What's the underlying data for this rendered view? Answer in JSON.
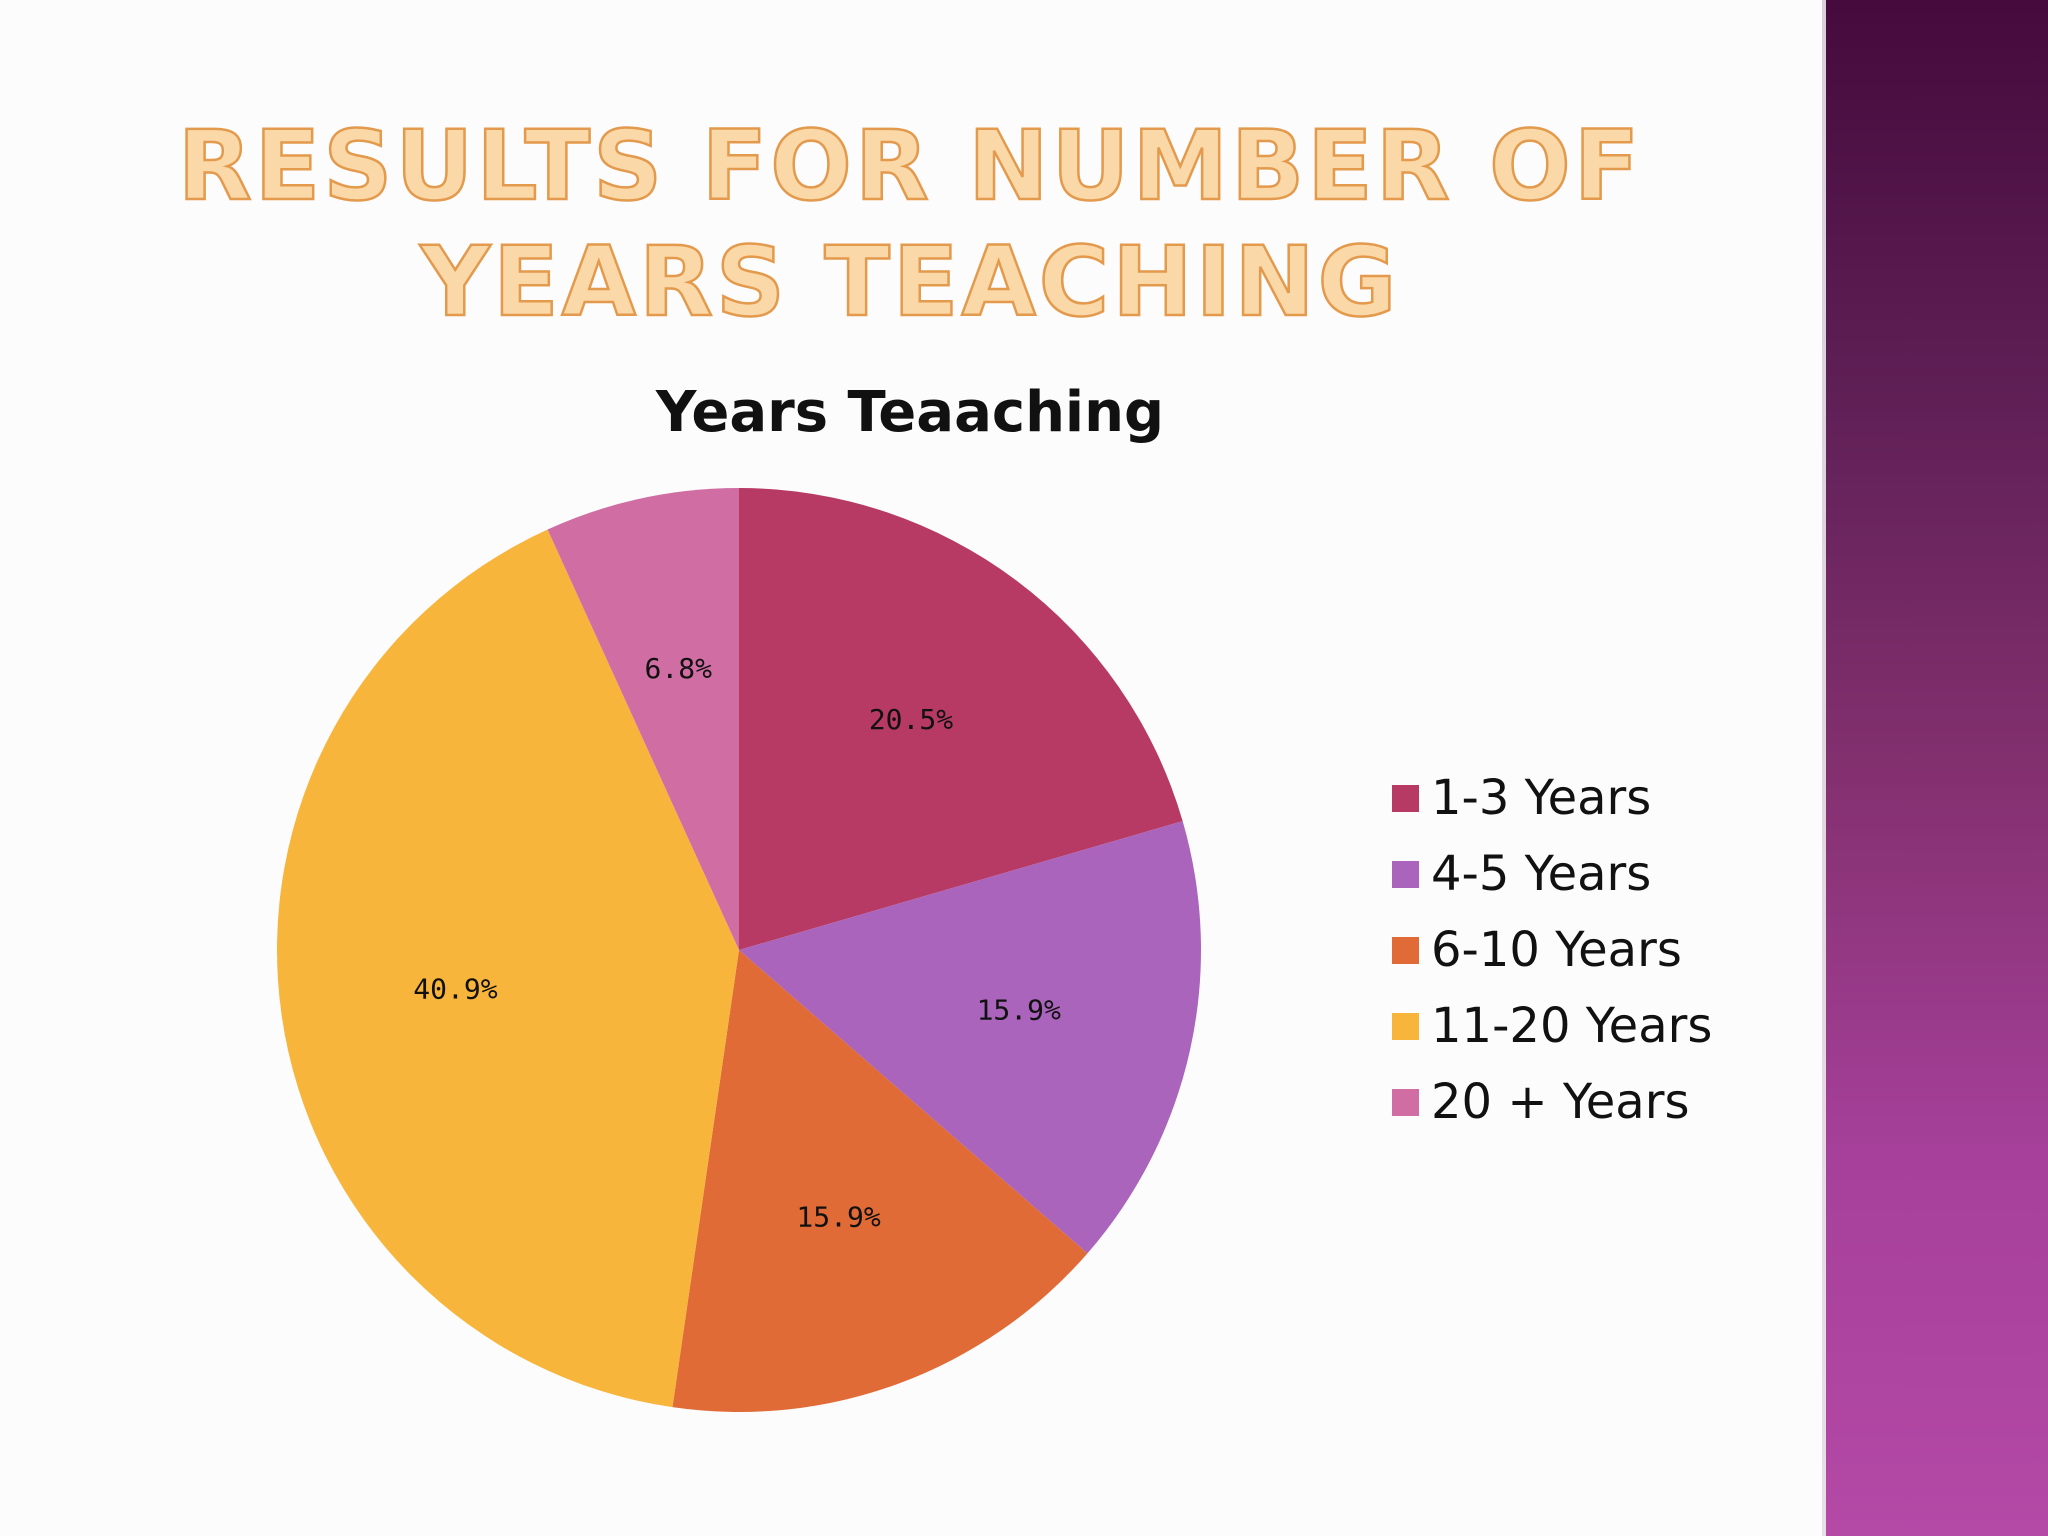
{
  "slide": {
    "title": "Results for Number of Years Teaching",
    "side_bar_color": "#7a2a6b"
  },
  "chart_data": {
    "type": "pie",
    "title": "Years Teaaching",
    "categories": [
      "1-3 Years",
      "4-5 Years",
      "6-10 Years",
      "11-20 Years",
      "20 + Years"
    ],
    "values": [
      20.5,
      15.9,
      15.9,
      40.9,
      6.8
    ],
    "value_labels": [
      "20.5%",
      "15.9%",
      "15.9%",
      "40.9%",
      "6.8%"
    ],
    "colors": [
      "#b73a64",
      "#aa64bc",
      "#e06b36",
      "#f8b53b",
      "#d06ea4"
    ],
    "legend_position": "right",
    "start_angle": "12 o'clock",
    "direction": "clockwise"
  }
}
